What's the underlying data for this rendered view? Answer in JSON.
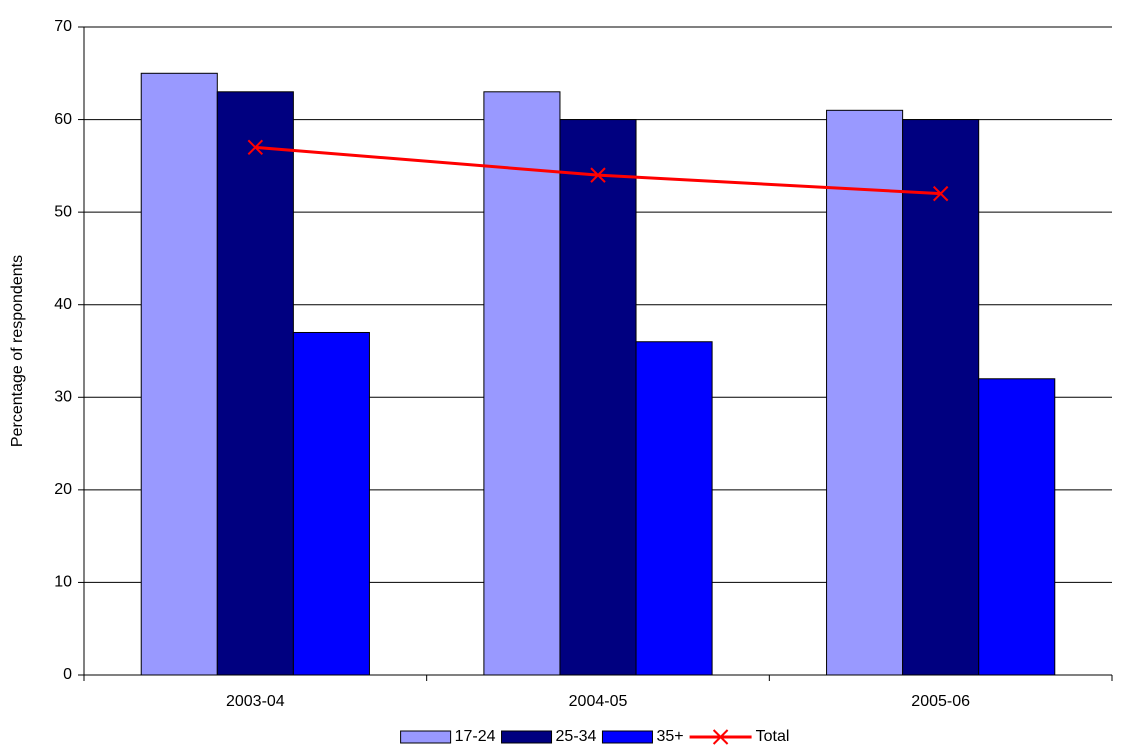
{
  "chart_data": {
    "type": "bar",
    "y_label": "Percentage of respondents",
    "categories": [
      "2003-04",
      "2004-05",
      "2005-06"
    ],
    "series": [
      {
        "name": "17-24",
        "color": "#9999ff",
        "values": [
          65,
          63,
          61
        ]
      },
      {
        "name": "25-34",
        "color": "#000080",
        "values": [
          63,
          60,
          60
        ]
      },
      {
        "name": "35+",
        "color": "#0000ff",
        "values": [
          37,
          36,
          32
        ]
      },
      {
        "name": "Total",
        "color": "#ff0000",
        "type": "line",
        "values": [
          57,
          54,
          52
        ]
      }
    ],
    "ylim": [
      0,
      70
    ],
    "yticks": [
      0,
      10,
      20,
      30,
      40,
      50,
      60,
      70
    ],
    "grid": true,
    "legend": "bottom"
  }
}
